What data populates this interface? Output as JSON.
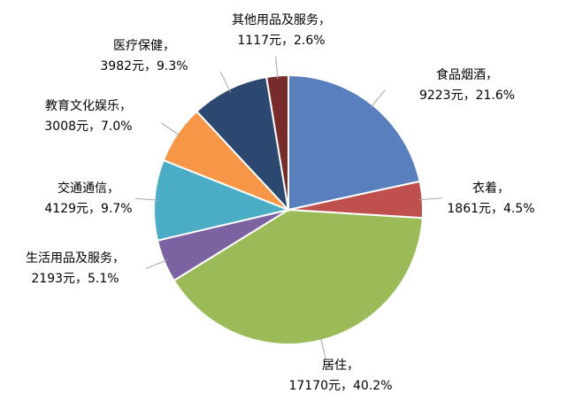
{
  "chart_data": {
    "type": "pie",
    "categories": [
      "食品烟酒，",
      "衣着，",
      "居住，",
      "生活用品及服务，",
      "交通通信，",
      "教育文化娱乐，",
      "医疗保健，",
      "其他用品及服务，"
    ],
    "values": [
      9223,
      1861,
      17170,
      2193,
      4129,
      3008,
      3982,
      1117
    ],
    "value_labels": [
      "9223元，21.6%",
      "1861元，4.5%",
      "17170元，40.2%",
      "2193元，5.1%",
      "4129元，9.7%",
      "3008元，7.0%",
      "3982元，9.3%",
      "1117元，2.6%"
    ],
    "colors": [
      "#5a7fbe",
      "#c0504d",
      "#9bbb59",
      "#7b62a0",
      "#4bacc6",
      "#f79646",
      "#2c4770",
      "#772c2a"
    ]
  }
}
